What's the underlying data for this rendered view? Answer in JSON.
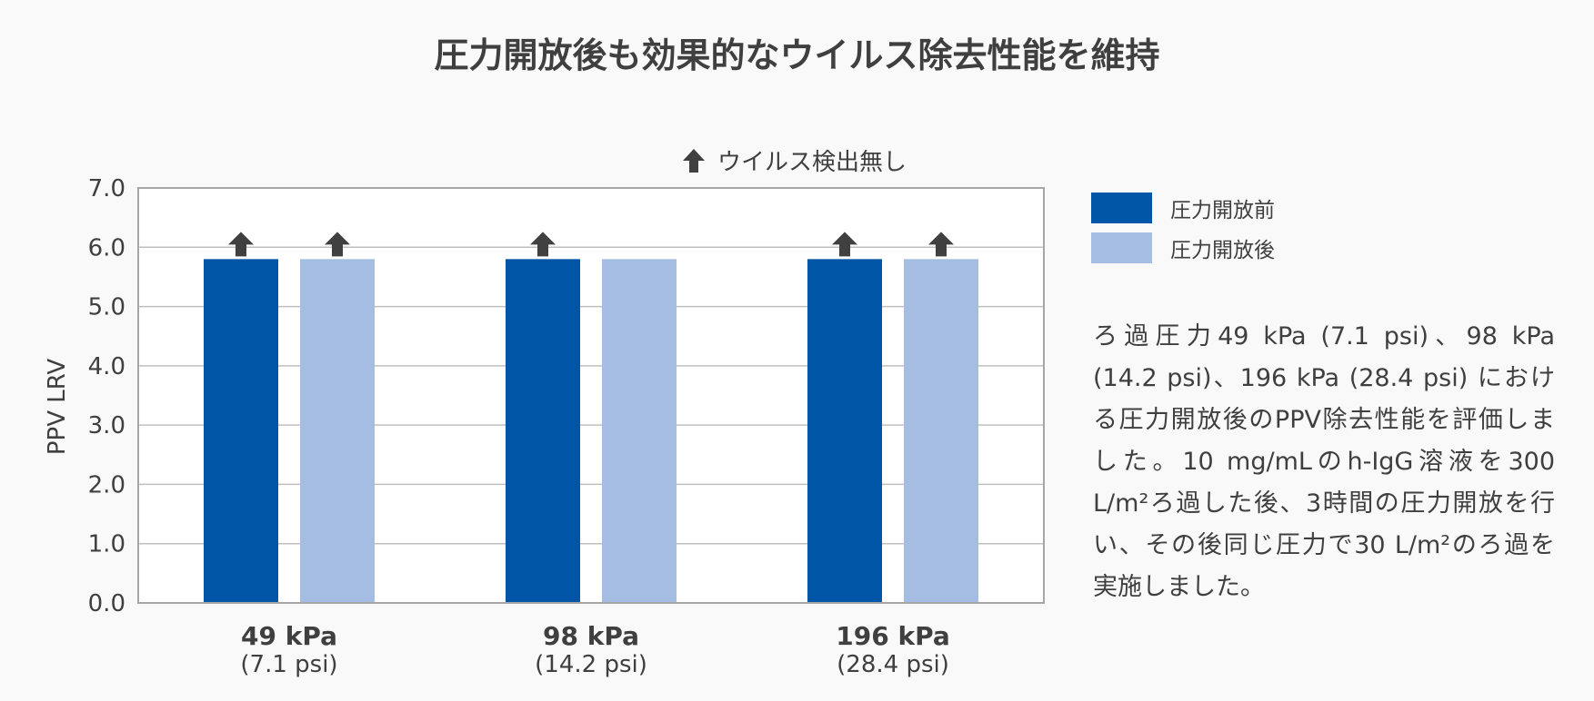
{
  "title": "圧力開放後も効果的なウイルス除去性能を維持",
  "note": "ウイルス検出無し",
  "legend": [
    "圧力開放前",
    "圧力開放後"
  ],
  "description": [
    "ろ過圧力49 kPa (7.1 psi)、98 kPa (14.2 psi)、196 kPa (28.4 psi) における圧力開放後のPPV除去性能を評価しました。10 mg/mLのh-IgG溶液を300 L/m²ろ過した後、3時間の圧力開放を行い、その後同じ圧力で30 L/m²のろ過を実施しました。"
  ],
  "colors": {
    "before": "#0055a6",
    "after": "#a5bde2",
    "arrow": "#404040",
    "grid": "#bfbfbf",
    "axis": "#a6a6a6"
  },
  "chart_data": {
    "type": "bar",
    "categories": [
      "49 kPa",
      "98 kPa",
      "196 kPa"
    ],
    "category_sublabels": [
      "(7.1 psi)",
      "(14.2 psi)",
      "(28.4 psi)"
    ],
    "series": [
      {
        "name": "圧力開放前",
        "values": [
          5.8,
          5.8,
          5.8
        ],
        "not_detected": [
          true,
          true,
          true
        ]
      },
      {
        "name": "圧力開放後",
        "values": [
          5.8,
          5.8,
          5.8
        ],
        "not_detected": [
          true,
          false,
          true
        ]
      }
    ],
    "ylabel": "PPV LRV",
    "ylim": [
      0,
      7
    ],
    "yticks": [
      "0.0",
      "1.0",
      "2.0",
      "3.0",
      "4.0",
      "5.0",
      "6.0",
      "7.0"
    ],
    "grid": true,
    "legend_position": "right"
  }
}
